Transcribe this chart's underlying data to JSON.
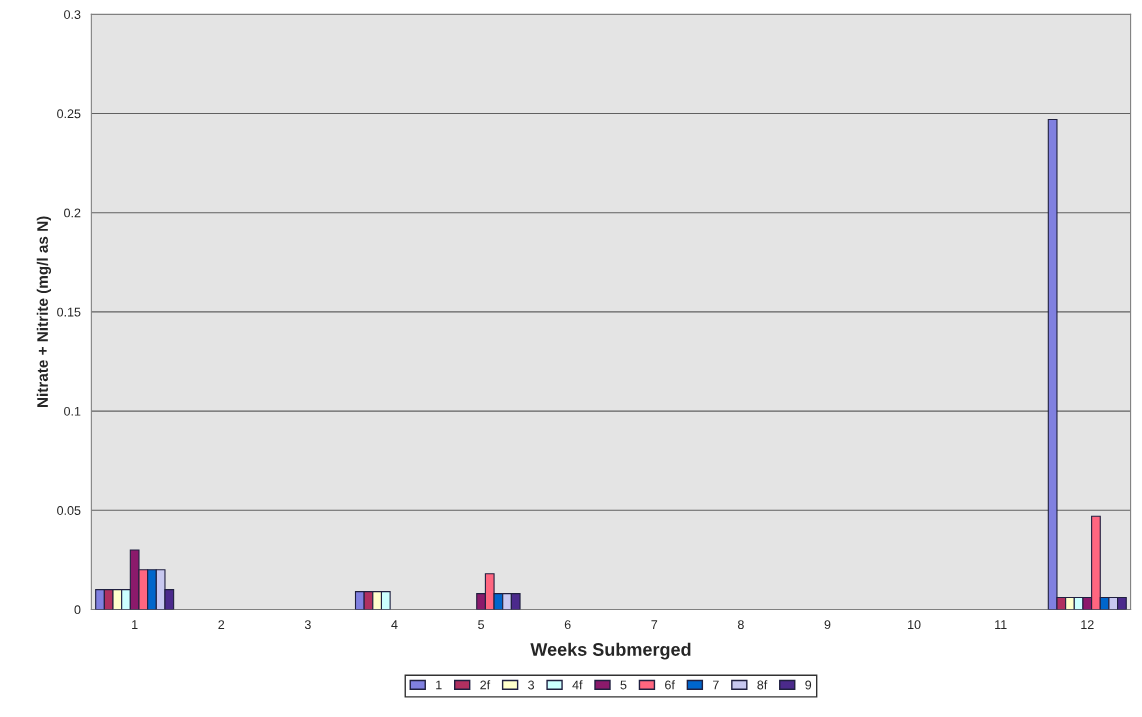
{
  "chart_data": {
    "type": "bar",
    "xlabel": "Weeks Submerged",
    "ylabel": "Nitrate + Nitrite (mg/l as N)",
    "categories": [
      "1",
      "2",
      "3",
      "4",
      "5",
      "6",
      "7",
      "8",
      "9",
      "10",
      "11",
      "12"
    ],
    "series": [
      {
        "name": "1",
        "color": "#8080e0",
        "values": [
          0.01,
          null,
          null,
          0.009,
          null,
          null,
          null,
          null,
          null,
          null,
          null,
          0.247
        ]
      },
      {
        "name": "2f",
        "color": "#b03060",
        "values": [
          0.01,
          null,
          null,
          0.009,
          null,
          null,
          null,
          null,
          null,
          null,
          null,
          0.006
        ]
      },
      {
        "name": "3",
        "color": "#ffffcc",
        "values": [
          0.01,
          null,
          null,
          0.009,
          null,
          null,
          null,
          null,
          null,
          null,
          null,
          0.006
        ]
      },
      {
        "name": "4f",
        "color": "#ccffff",
        "values": [
          0.01,
          null,
          null,
          0.009,
          null,
          null,
          null,
          null,
          null,
          null,
          null,
          0.006
        ]
      },
      {
        "name": "5",
        "color": "#8b1a6b",
        "values": [
          0.03,
          null,
          null,
          null,
          0.008,
          null,
          null,
          null,
          null,
          null,
          null,
          0.006
        ]
      },
      {
        "name": "6f",
        "color": "#ff6680",
        "values": [
          0.02,
          null,
          null,
          null,
          0.018,
          null,
          null,
          null,
          null,
          null,
          null,
          0.047
        ]
      },
      {
        "name": "7",
        "color": "#0066cc",
        "values": [
          0.02,
          null,
          null,
          null,
          0.008,
          null,
          null,
          null,
          null,
          null,
          null,
          0.006
        ]
      },
      {
        "name": "8f",
        "color": "#c8c8f0",
        "values": [
          0.02,
          null,
          null,
          null,
          0.008,
          null,
          null,
          null,
          null,
          null,
          null,
          0.006
        ]
      },
      {
        "name": "9",
        "color": "#4b2a8c",
        "values": [
          0.01,
          null,
          null,
          null,
          0.008,
          null,
          null,
          null,
          null,
          null,
          null,
          0.006
        ]
      }
    ],
    "ylim": [
      0,
      0.3
    ],
    "yticks": [
      0,
      0.05,
      0.1,
      0.15,
      0.2,
      0.25,
      0.3
    ],
    "grid": "y",
    "legend": "bottom"
  }
}
